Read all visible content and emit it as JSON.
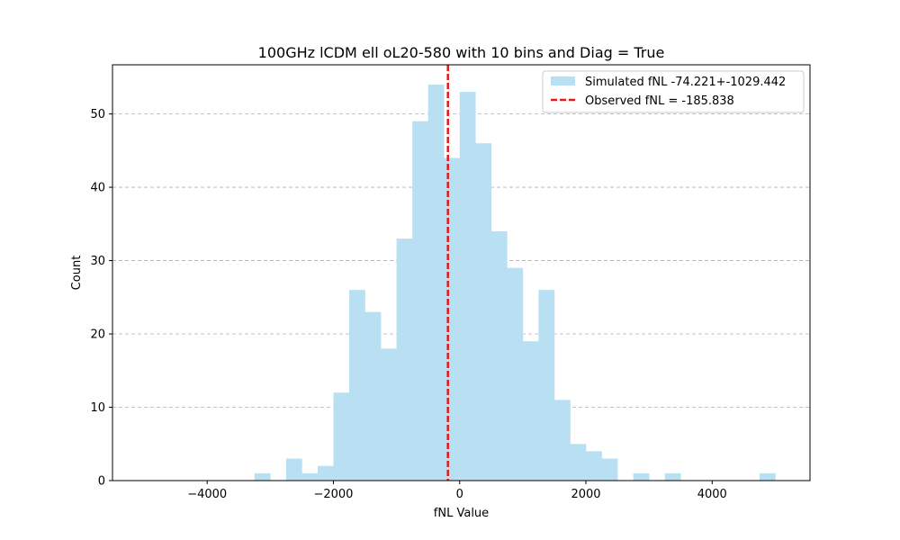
{
  "chart_data": {
    "type": "bar",
    "title": "100GHz lCDM ell oL20-580 with 10 bins and Diag = True",
    "xlabel": "fNL Value",
    "ylabel": "Count",
    "xlim": [
      -5500,
      5550
    ],
    "ylim": [
      0,
      56.7
    ],
    "xticks": [
      -4000,
      -2000,
      0,
      2000,
      4000
    ],
    "xtick_labels": [
      "−4000",
      "−2000",
      "0",
      "2000",
      "4000"
    ],
    "yticks": [
      0,
      10,
      20,
      30,
      40,
      50
    ],
    "ytick_labels": [
      "0",
      "10",
      "20",
      "30",
      "40",
      "50"
    ],
    "grid": "y dashed",
    "legend_position": "top-right",
    "bin_width": 250,
    "histogram": {
      "name": "Simulated fNL -74.221+-1029.442",
      "color": "#b8e0f2",
      "bin_starts": [
        -5000,
        -4750,
        -4500,
        -4250,
        -4000,
        -3750,
        -3500,
        -3250,
        -3000,
        -2750,
        -2500,
        -2250,
        -2000,
        -1750,
        -1500,
        -1250,
        -1000,
        -750,
        -500,
        -250,
        0,
        250,
        500,
        750,
        1000,
        1250,
        1500,
        1750,
        2000,
        2250,
        2500,
        2750,
        3000,
        3250,
        3500,
        3750,
        4000,
        4250,
        4500,
        4750
      ],
      "counts": [
        0,
        0,
        0,
        0,
        0,
        0,
        0,
        1,
        0,
        3,
        1,
        2,
        12,
        26,
        23,
        18,
        33,
        49,
        54,
        44,
        53,
        46,
        34,
        29,
        19,
        26,
        11,
        5,
        4,
        3,
        0,
        1,
        0,
        1,
        0,
        0,
        0,
        0,
        0,
        1
      ]
    },
    "observed": {
      "name": "Observed fNL = -185.838",
      "value": -185.838,
      "color": "#e31a1c"
    }
  }
}
